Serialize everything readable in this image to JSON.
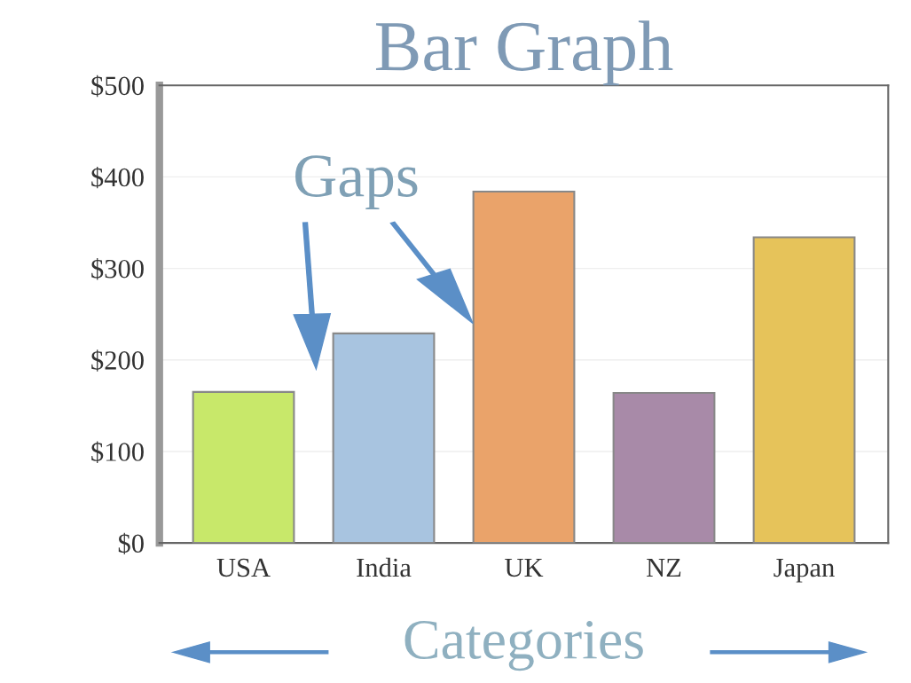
{
  "chart_data": {
    "type": "bar",
    "title": "Bar Graph",
    "xlabel": "Categories",
    "categories": [
      "USA",
      "India",
      "UK",
      "NZ",
      "Japan"
    ],
    "values": [
      165,
      229,
      384,
      164,
      334
    ],
    "colors": [
      "#c8e86a",
      "#a8c4e0",
      "#eaa36a",
      "#a88aa8",
      "#e6c35a"
    ],
    "ylim": [
      0,
      500
    ],
    "yticks": [
      {
        "value": 0,
        "label": "$0"
      },
      {
        "value": 100,
        "label": "$100"
      },
      {
        "value": 200,
        "label": "$200"
      },
      {
        "value": 300,
        "label": "$300"
      },
      {
        "value": 400,
        "label": "$400"
      },
      {
        "value": 500,
        "label": "$500"
      }
    ],
    "grid": "y",
    "annotations": [
      "Gaps"
    ]
  }
}
